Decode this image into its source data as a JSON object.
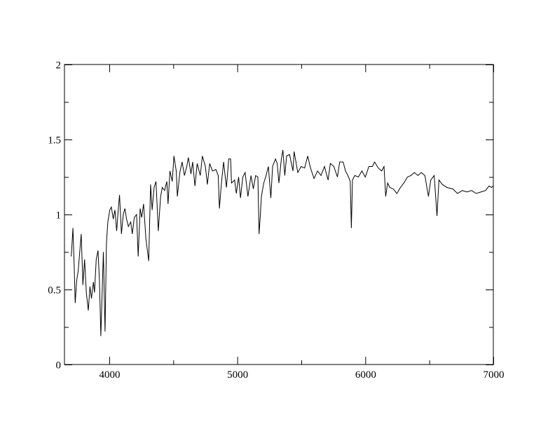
{
  "chart_data": {
    "type": "line",
    "title": "",
    "xlabel": "",
    "ylabel": "",
    "xlim": [
      3650,
      7000
    ],
    "ylim": [
      0,
      2
    ],
    "x_ticks": [
      4000,
      5000,
      6000,
      7000
    ],
    "x_tick_labels": [
      "4000",
      "5000",
      "6000",
      "7000"
    ],
    "x_minor_ticks": [
      4500,
      5500,
      6500
    ],
    "y_ticks": [
      0,
      0.5,
      1,
      1.5,
      2
    ],
    "y_tick_labels": [
      "0",
      "0.5",
      "1",
      "1.5",
      "2"
    ],
    "y_minor_ticks": [
      0.25,
      0.75,
      1.25,
      1.75
    ],
    "grid": false,
    "line_color": "#000000",
    "series": [
      {
        "x": [
          3703,
          3716,
          3727,
          3734,
          3745,
          3757,
          3781,
          3794,
          3807,
          3821,
          3836,
          3849,
          3861,
          3876,
          3885,
          3898,
          3912,
          3923,
          3934,
          3945,
          3954,
          3967,
          3978,
          3989,
          4004,
          4016,
          4031,
          4044,
          4058,
          4071,
          4080,
          4095,
          4109,
          4122,
          4135,
          4149,
          4168,
          4180,
          4195,
          4213,
          4226,
          4241,
          4253,
          4268,
          4286,
          4308,
          4323,
          4335,
          4350,
          4365,
          4383,
          4401,
          4414,
          4432,
          4450,
          4459,
          4474,
          4492,
          4505,
          4523,
          4532,
          4551,
          4569,
          4587,
          4605,
          4618,
          4638,
          4651,
          4669,
          4687,
          4711,
          4727,
          4751,
          4766,
          4784,
          4806,
          4833,
          4851,
          4860,
          4875,
          4893,
          4915,
          4933,
          4948,
          4955,
          4979,
          4992,
          5010,
          5025,
          5043,
          5061,
          5083,
          5107,
          5125,
          5143,
          5161,
          5170,
          5179,
          5188,
          5207,
          5225,
          5243,
          5262,
          5276,
          5298,
          5312,
          5325,
          5344,
          5356,
          5371,
          5385,
          5408,
          5435,
          5444,
          5472,
          5499,
          5526,
          5550,
          5572,
          5599,
          5627,
          5654,
          5681,
          5709,
          5727,
          5754,
          5782,
          5800,
          5827,
          5845,
          5864,
          5882,
          5891,
          5900,
          5918,
          5946,
          5973,
          6000,
          6028,
          6055,
          6073,
          6101,
          6128,
          6146,
          6159,
          6174,
          6192,
          6219,
          6247,
          6274,
          6301,
          6329,
          6356,
          6383,
          6411,
          6438,
          6465,
          6493,
          6511,
          6538,
          6560,
          6575,
          6602,
          6638,
          6684,
          6720,
          6757,
          6793,
          6830,
          6866,
          6903,
          6939,
          6967,
          6985,
          6998
        ],
        "y": [
          0.72,
          0.91,
          0.62,
          0.41,
          0.56,
          0.62,
          0.87,
          0.53,
          0.7,
          0.48,
          0.36,
          0.52,
          0.44,
          0.55,
          0.48,
          0.7,
          0.76,
          0.56,
          0.19,
          0.5,
          0.75,
          0.22,
          0.81,
          0.95,
          1.03,
          1.05,
          0.97,
          1.03,
          0.89,
          1.04,
          1.13,
          0.87,
          1.0,
          1.04,
          0.97,
          0.92,
          0.95,
          0.87,
          0.98,
          1.0,
          0.72,
          1.04,
          0.98,
          1.07,
          0.84,
          0.69,
          1.2,
          1.03,
          1.18,
          1.22,
          0.89,
          1.12,
          1.18,
          1.16,
          1.22,
          1.07,
          1.29,
          1.22,
          1.39,
          1.29,
          1.12,
          1.28,
          1.35,
          1.26,
          1.32,
          1.38,
          1.27,
          1.35,
          1.19,
          1.34,
          1.26,
          1.39,
          1.32,
          1.2,
          1.34,
          1.29,
          1.3,
          1.26,
          1.04,
          1.2,
          1.35,
          1.18,
          1.37,
          1.37,
          1.21,
          1.23,
          1.14,
          1.25,
          1.11,
          1.25,
          1.28,
          1.12,
          1.26,
          1.17,
          1.26,
          1.25,
          0.87,
          0.98,
          1.12,
          1.21,
          1.26,
          1.32,
          1.11,
          1.32,
          1.37,
          1.34,
          1.21,
          1.37,
          1.43,
          1.26,
          1.39,
          1.4,
          1.29,
          1.42,
          1.28,
          1.32,
          1.31,
          1.39,
          1.31,
          1.24,
          1.29,
          1.26,
          1.32,
          1.23,
          1.34,
          1.32,
          1.25,
          1.35,
          1.35,
          1.29,
          1.26,
          1.22,
          0.91,
          1.23,
          1.26,
          1.25,
          1.29,
          1.25,
          1.32,
          1.32,
          1.35,
          1.31,
          1.29,
          1.32,
          1.12,
          1.21,
          1.18,
          1.17,
          1.14,
          1.18,
          1.21,
          1.25,
          1.26,
          1.28,
          1.26,
          1.28,
          1.26,
          1.12,
          1.23,
          1.26,
          0.99,
          1.23,
          1.2,
          1.18,
          1.17,
          1.14,
          1.16,
          1.15,
          1.16,
          1.14,
          1.15,
          1.16,
          1.19,
          1.18,
          1.19
        ]
      }
    ]
  }
}
